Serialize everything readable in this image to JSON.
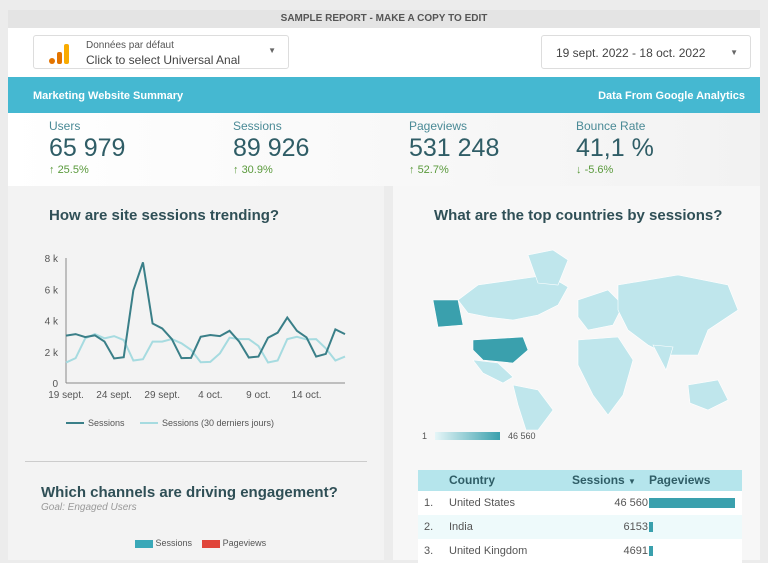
{
  "banner": "SAMPLE REPORT - MAKE A COPY TO EDIT",
  "data_source": {
    "label": "Données par défaut",
    "value": "Click to select Universal Anal",
    "icon": "analytics-icon"
  },
  "date_range": "19 sept. 2022 - 18 oct. 2022",
  "title_bar": {
    "left": "Marketing Website Summary",
    "right": "Data From Google Analytics",
    "color": "#45b8d1"
  },
  "kpis": [
    {
      "label": "Users",
      "value": "65 979",
      "delta": "25.5%",
      "dir": "up"
    },
    {
      "label": "Sessions",
      "value": "89 926",
      "delta": "30.9%",
      "dir": "up"
    },
    {
      "label": "Pageviews",
      "value": "531 248",
      "delta": "52.7%",
      "dir": "up"
    },
    {
      "label": "Bounce Rate",
      "value": "41,1 %",
      "delta": "-5.6%",
      "dir": "down"
    }
  ],
  "trend": {
    "title": "How are site sessions trending?"
  },
  "chart_data": {
    "type": "line",
    "x_ticks": [
      "19 sept.",
      "24 sept.",
      "29 sept.",
      "4 oct.",
      "9 oct.",
      "14 oct."
    ],
    "y_ticks": [
      "0",
      "2 k",
      "4 k",
      "6 k",
      "8 k"
    ],
    "ylim": [
      0,
      8000
    ],
    "series": [
      {
        "name": "Sessions",
        "color": "#3a7f88",
        "values": [
          3030,
          3130,
          2940,
          3050,
          2650,
          1570,
          1650,
          5930,
          7720,
          3810,
          3490,
          2810,
          1590,
          1610,
          2960,
          3070,
          3000,
          3340,
          2650,
          1630,
          1690,
          2900,
          3220,
          4190,
          3340,
          2920,
          1690,
          1860,
          3430,
          3130
        ]
      },
      {
        "name": "Sessions (30 derniers jours)",
        "color": "#a6dbe0",
        "values": [
          1310,
          1590,
          2860,
          3130,
          2860,
          3000,
          2750,
          1440,
          1520,
          2650,
          2650,
          2810,
          2540,
          2120,
          1330,
          1350,
          1900,
          2900,
          2810,
          2810,
          2370,
          1310,
          1440,
          2810,
          2960,
          2790,
          2810,
          2220,
          1440,
          1690
        ]
      }
    ]
  },
  "channels": {
    "title": "Which channels are driving engagement?",
    "subtitle": "Goal: Engaged Users",
    "legend": [
      {
        "name": "Sessions",
        "color": "#3aa8b8"
      },
      {
        "name": "Pageviews",
        "color": "#e0453a"
      }
    ]
  },
  "countries": {
    "title": "What are the top countries by sessions?",
    "scale_min": "1",
    "scale_max": "46 560",
    "headers": [
      "Country",
      "Sessions",
      "Pageviews"
    ],
    "rows": [
      {
        "rank": "1.",
        "country": "United States",
        "sessions": "46 560",
        "pv": 1.0
      },
      {
        "rank": "2.",
        "country": "India",
        "sessions": "6153",
        "pv": 0.03
      },
      {
        "rank": "3.",
        "country": "United Kingdom",
        "sessions": "4691",
        "pv": 0.03
      }
    ]
  }
}
